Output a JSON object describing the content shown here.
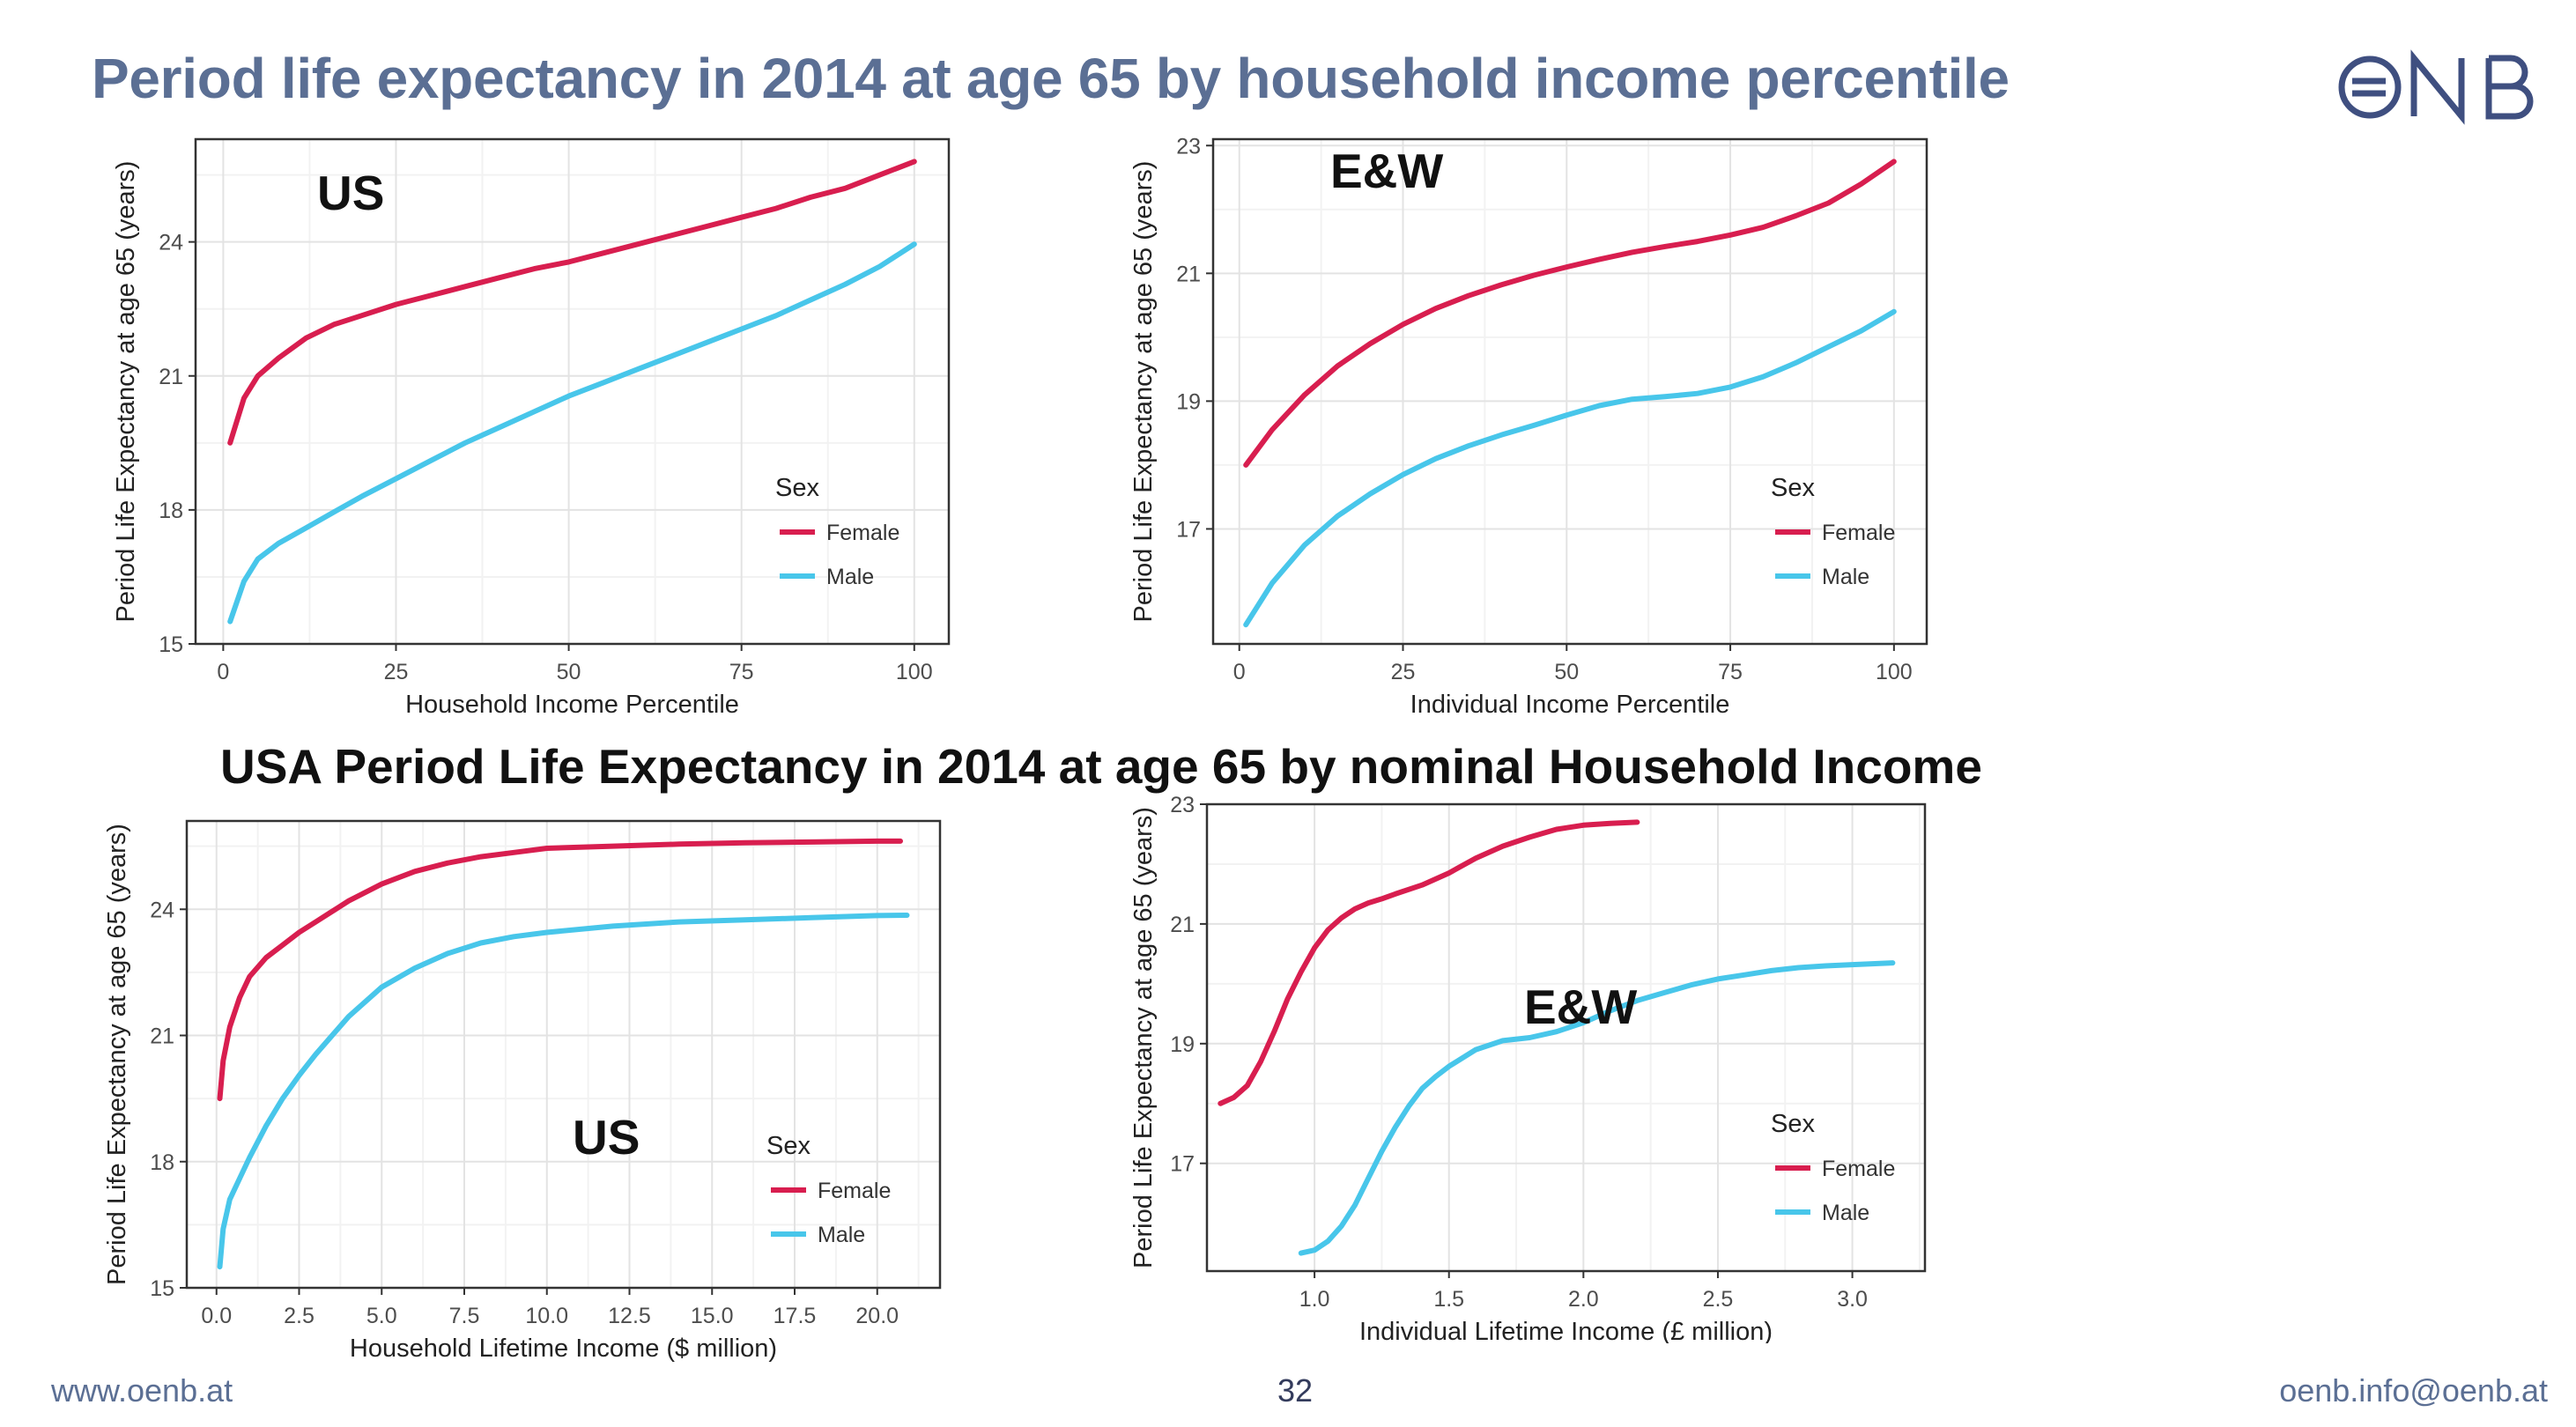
{
  "slide": {
    "title": "Period life expectancy in 2014 at age 65 by household income percentile",
    "subtitle": "USA Period Life Expectancy in 2014 at age 65 by nominal Household Income",
    "logo_text": "ONB",
    "footer": {
      "left": "www.oenb.at",
      "page": "32",
      "right": "oenb.info@oenb.at"
    }
  },
  "colors": {
    "female": "#d81e4f",
    "male": "#48c6ea",
    "title": "#5b6f94"
  },
  "chart_data": [
    {
      "type": "line",
      "panel_label": "US",
      "xlabel": "Household Income Percentile",
      "ylabel": "Period Life Expectancy at age 65 (years)",
      "xlim": [
        -4,
        105
      ],
      "ylim": [
        15,
        26.3
      ],
      "xticks": [
        0,
        25,
        50,
        75,
        100
      ],
      "yticks": [
        15,
        18,
        21,
        24
      ],
      "grid": true,
      "legend": {
        "title": "Sex",
        "position": "right",
        "entries": [
          "Female",
          "Male"
        ]
      },
      "series": [
        {
          "name": "Female",
          "x": [
            1,
            3,
            5,
            8,
            12,
            16,
            20,
            25,
            30,
            35,
            40,
            45,
            50,
            55,
            60,
            65,
            70,
            75,
            80,
            85,
            90,
            95,
            100
          ],
          "y": [
            19.5,
            20.5,
            21.0,
            21.4,
            21.85,
            22.15,
            22.35,
            22.6,
            22.8,
            23.0,
            23.2,
            23.4,
            23.55,
            23.75,
            23.95,
            24.15,
            24.35,
            24.55,
            24.75,
            25.0,
            25.2,
            25.5,
            25.8
          ]
        },
        {
          "name": "Male",
          "x": [
            1,
            3,
            5,
            8,
            12,
            16,
            20,
            25,
            30,
            35,
            40,
            45,
            50,
            55,
            60,
            65,
            70,
            75,
            80,
            85,
            90,
            95,
            100
          ],
          "y": [
            15.5,
            16.4,
            16.9,
            17.25,
            17.6,
            17.95,
            18.3,
            18.7,
            19.1,
            19.5,
            19.85,
            20.2,
            20.55,
            20.85,
            21.15,
            21.45,
            21.75,
            22.05,
            22.35,
            22.7,
            23.05,
            23.45,
            23.95
          ]
        }
      ]
    },
    {
      "type": "line",
      "panel_label": "E&W",
      "xlabel": "Individual Income Percentile",
      "ylabel": "Period Life Expectancy at age 65 (years)",
      "xlim": [
        -4,
        105
      ],
      "ylim": [
        15.2,
        23.1
      ],
      "xticks": [
        0,
        25,
        50,
        75,
        100
      ],
      "yticks": [
        17,
        19,
        21,
        23
      ],
      "grid": true,
      "legend": {
        "title": "Sex",
        "position": "right",
        "entries": [
          "Female",
          "Male"
        ]
      },
      "series": [
        {
          "name": "Female",
          "x": [
            1,
            5,
            10,
            15,
            20,
            25,
            30,
            35,
            40,
            45,
            50,
            55,
            60,
            65,
            70,
            75,
            80,
            85,
            90,
            95,
            100
          ],
          "y": [
            18.0,
            18.55,
            19.1,
            19.55,
            19.9,
            20.2,
            20.45,
            20.65,
            20.82,
            20.97,
            21.1,
            21.22,
            21.33,
            21.42,
            21.5,
            21.6,
            21.72,
            21.9,
            22.1,
            22.4,
            22.75
          ]
        },
        {
          "name": "Male",
          "x": [
            1,
            5,
            10,
            15,
            20,
            25,
            30,
            35,
            40,
            45,
            50,
            55,
            60,
            65,
            70,
            75,
            80,
            85,
            90,
            95,
            100
          ],
          "y": [
            15.5,
            16.15,
            16.75,
            17.2,
            17.55,
            17.85,
            18.1,
            18.3,
            18.47,
            18.62,
            18.78,
            18.93,
            19.03,
            19.07,
            19.12,
            19.22,
            19.38,
            19.6,
            19.85,
            20.1,
            20.4
          ]
        }
      ]
    },
    {
      "type": "line",
      "panel_label": "US",
      "xlabel": "Household Lifetime Income ($ million)",
      "ylabel": "Period Life Expectancy at age 65 (years)",
      "xlim": [
        -0.9,
        21.9
      ],
      "ylim": [
        15,
        26.1
      ],
      "xticks": [
        0.0,
        2.5,
        5.0,
        7.5,
        10.0,
        12.5,
        15.0,
        17.5,
        20.0
      ],
      "yticks": [
        15,
        18,
        21,
        24
      ],
      "grid": true,
      "legend": {
        "title": "Sex",
        "position": "right",
        "entries": [
          "Female",
          "Male"
        ]
      },
      "series": [
        {
          "name": "Female",
          "x": [
            0.1,
            0.2,
            0.4,
            0.7,
            1.0,
            1.5,
            2.0,
            2.5,
            3.0,
            3.5,
            4.0,
            5.0,
            6.0,
            7.0,
            8.0,
            9.0,
            10.0,
            12.0,
            14.0,
            16.0,
            18.0,
            20.0,
            20.7
          ],
          "y": [
            19.5,
            20.4,
            21.2,
            21.9,
            22.4,
            22.85,
            23.15,
            23.45,
            23.7,
            23.95,
            24.2,
            24.6,
            24.9,
            25.1,
            25.25,
            25.35,
            25.45,
            25.5,
            25.55,
            25.58,
            25.6,
            25.62,
            25.62
          ]
        },
        {
          "name": "Male",
          "x": [
            0.1,
            0.2,
            0.4,
            0.7,
            1.0,
            1.5,
            2.0,
            2.5,
            3.0,
            3.5,
            4.0,
            5.0,
            6.0,
            7.0,
            8.0,
            9.0,
            10.0,
            12.0,
            14.0,
            16.0,
            18.0,
            20.0,
            20.9
          ],
          "y": [
            15.5,
            16.4,
            17.1,
            17.6,
            18.1,
            18.85,
            19.5,
            20.05,
            20.55,
            21.0,
            21.45,
            22.15,
            22.6,
            22.95,
            23.2,
            23.35,
            23.45,
            23.6,
            23.7,
            23.75,
            23.8,
            23.85,
            23.86
          ]
        }
      ]
    },
    {
      "type": "line",
      "panel_label": "E&W",
      "xlabel": "Individual Lifetime Income (£ million)",
      "ylabel": "Period Life Expectancy at age 65 (years)",
      "xlim": [
        0.6,
        3.27
      ],
      "ylim": [
        15.2,
        23.0
      ],
      "xticks": [
        1.0,
        1.5,
        2.0,
        2.5,
        3.0
      ],
      "yticks": [
        17,
        19,
        21,
        23
      ],
      "grid": true,
      "legend": {
        "title": "Sex",
        "position": "right",
        "entries": [
          "Female",
          "Male"
        ]
      },
      "series": [
        {
          "name": "Female",
          "x": [
            0.65,
            0.7,
            0.75,
            0.8,
            0.85,
            0.9,
            0.95,
            1.0,
            1.05,
            1.1,
            1.15,
            1.2,
            1.25,
            1.3,
            1.4,
            1.5,
            1.6,
            1.7,
            1.8,
            1.9,
            2.0,
            2.1,
            2.2
          ],
          "y": [
            18.0,
            18.1,
            18.3,
            18.7,
            19.2,
            19.75,
            20.2,
            20.6,
            20.9,
            21.1,
            21.25,
            21.35,
            21.42,
            21.5,
            21.65,
            21.85,
            22.1,
            22.3,
            22.45,
            22.58,
            22.65,
            22.68,
            22.7
          ]
        },
        {
          "name": "Male",
          "x": [
            0.95,
            1.0,
            1.05,
            1.1,
            1.15,
            1.2,
            1.25,
            1.3,
            1.35,
            1.4,
            1.45,
            1.5,
            1.6,
            1.7,
            1.8,
            1.9,
            2.0,
            2.1,
            2.2,
            2.3,
            2.4,
            2.5,
            2.6,
            2.7,
            2.8,
            2.9,
            3.0,
            3.15
          ],
          "y": [
            15.5,
            15.55,
            15.7,
            15.95,
            16.3,
            16.75,
            17.2,
            17.6,
            17.95,
            18.25,
            18.45,
            18.62,
            18.9,
            19.05,
            19.1,
            19.2,
            19.35,
            19.55,
            19.72,
            19.85,
            19.98,
            20.08,
            20.15,
            20.22,
            20.27,
            20.3,
            20.32,
            20.35
          ]
        }
      ]
    }
  ]
}
